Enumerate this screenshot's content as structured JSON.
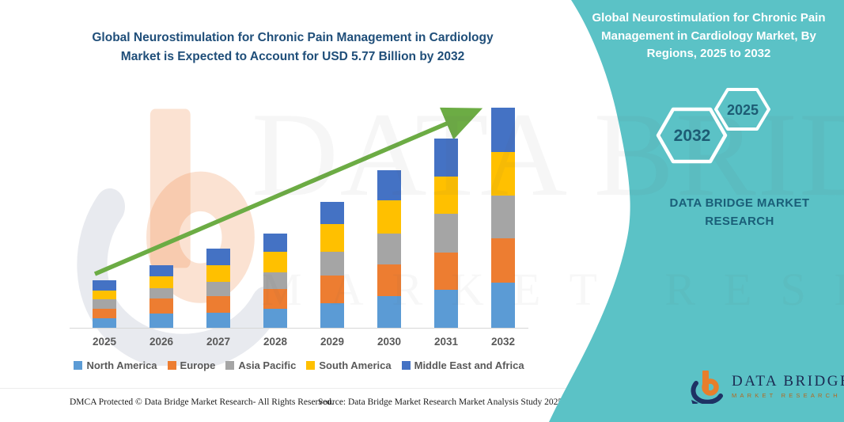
{
  "header": {
    "main_title": "Global Neurostimulation for Chronic Pain Management in Cardiology Market is Expected to Account for USD 5.77 Billion by 2032"
  },
  "side_panel": {
    "title": "Global Neurostimulation for Chronic Pain Management in Cardiology Market, By Regions, 2025 to 2032",
    "hexagon_back": "2032",
    "hexagon_front": "2025",
    "brand_line1": "DATA BRIDGE MARKET",
    "brand_line2": "RESEARCH",
    "accent_color": "#5BC2C6"
  },
  "watermark": {
    "line1": "DATA BRIDGE",
    "line2": "MARKET RESEARCH"
  },
  "brand_logo": {
    "name": "DATA BRIDGE",
    "subtitle": "MARKET RESEARCH"
  },
  "footer": {
    "left": "DMCA Protected © Data Bridge Market Research-  All Rights Reserved.",
    "right": "Source: Data Bridge Market Research  Market Analysis Study 2025"
  },
  "chart_data": {
    "type": "bar",
    "stacked": true,
    "unit": "USD Billion",
    "title": "Global Neurostimulation for Chronic Pain Management in Cardiology Market is Expected to Account for USD 5.77 Billion by 2032",
    "categories": [
      "2025",
      "2026",
      "2027",
      "2028",
      "2029",
      "2030",
      "2031",
      "2032"
    ],
    "series": [
      {
        "name": "North America",
        "color": "#5B9BD5",
        "values": [
          0.25,
          0.37,
          0.39,
          0.5,
          0.64,
          0.83,
          1.0,
          1.18
        ]
      },
      {
        "name": "Europe",
        "color": "#ED7D31",
        "values": [
          0.25,
          0.39,
          0.43,
          0.52,
          0.73,
          0.83,
          0.98,
          1.16
        ]
      },
      {
        "name": "Asia Pacific",
        "color": "#A5A5A5",
        "values": [
          0.25,
          0.27,
          0.39,
          0.44,
          0.62,
          0.81,
          1.0,
          1.12
        ]
      },
      {
        "name": "South America",
        "color": "#FFC000",
        "values": [
          0.23,
          0.31,
          0.42,
          0.54,
          0.73,
          0.87,
          0.98,
          1.14
        ]
      },
      {
        "name": "Middle East and Africa",
        "color": "#4472C4",
        "values": [
          0.27,
          0.3,
          0.45,
          0.48,
          0.58,
          0.79,
          1.0,
          1.17
        ]
      }
    ],
    "totals_estimated": [
      1.25,
      1.64,
      2.08,
      2.48,
      3.3,
      4.13,
      4.96,
      5.77
    ],
    "highlighted_total": "USD 5.77 Billion by 2032",
    "value_labels_shown": false,
    "axis_values_shown": false,
    "legend_position": "bottom",
    "trend_arrow_color": "#6CAC44",
    "ylim": [
      0,
      6.2
    ]
  }
}
